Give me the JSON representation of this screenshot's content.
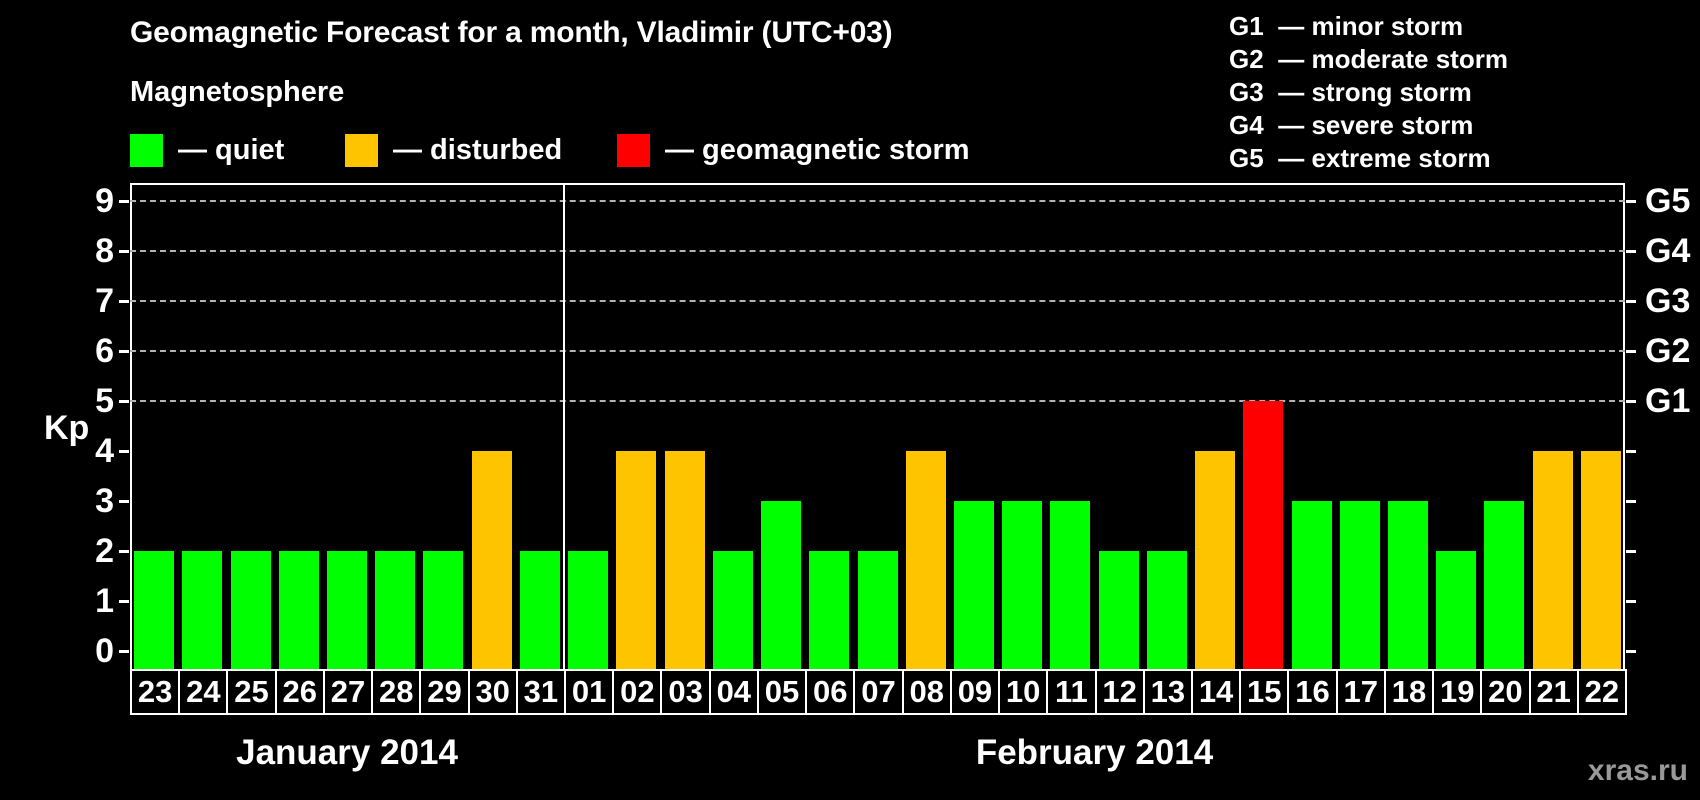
{
  "title": "Geomagnetic Forecast for a month, Vladimir (UTC+03)",
  "watermark": "xras.ru",
  "magnetosphere_legend": {
    "heading": "Magnetosphere",
    "items": [
      {
        "name": "quiet",
        "label": "— quiet",
        "color": "#00ff00"
      },
      {
        "name": "disturbed",
        "label": "— disturbed",
        "color": "#ffc400"
      },
      {
        "name": "storm",
        "label": "— geomagnetic storm",
        "color": "#ff0000"
      }
    ]
  },
  "g_scale_legend": {
    "items": [
      {
        "code": "G1",
        "label": "— minor storm"
      },
      {
        "code": "G2",
        "label": "— moderate storm"
      },
      {
        "code": "G3",
        "label": "— strong storm"
      },
      {
        "code": "G4",
        "label": "— severe storm"
      },
      {
        "code": "G5",
        "label": "— extreme storm"
      }
    ]
  },
  "chart_data": {
    "type": "bar",
    "ylabel": "Kp",
    "ylim": [
      0,
      9
    ],
    "left_ticks": [
      0,
      1,
      2,
      3,
      4,
      5,
      6,
      7,
      8,
      9
    ],
    "gridlines_at_kp": [
      5,
      6,
      7,
      8,
      9
    ],
    "right_axis": [
      {
        "kp": 5,
        "label": "G1"
      },
      {
        "kp": 6,
        "label": "G2"
      },
      {
        "kp": 7,
        "label": "G3"
      },
      {
        "kp": 8,
        "label": "G4"
      },
      {
        "kp": 9,
        "label": "G5"
      }
    ],
    "colors": {
      "quiet": "#00ff00",
      "disturbed": "#ffc400",
      "storm": "#ff0000"
    },
    "legend_position": "top-left",
    "grid": "dashed horizontal at storm levels only",
    "months": [
      {
        "label": "January 2014",
        "bars": [
          {
            "day": "23",
            "kp": 2,
            "status": "quiet"
          },
          {
            "day": "24",
            "kp": 2,
            "status": "quiet"
          },
          {
            "day": "25",
            "kp": 2,
            "status": "quiet"
          },
          {
            "day": "26",
            "kp": 2,
            "status": "quiet"
          },
          {
            "day": "27",
            "kp": 2,
            "status": "quiet"
          },
          {
            "day": "28",
            "kp": 2,
            "status": "quiet"
          },
          {
            "day": "29",
            "kp": 2,
            "status": "quiet"
          },
          {
            "day": "30",
            "kp": 4,
            "status": "disturbed"
          },
          {
            "day": "31",
            "kp": 2,
            "status": "quiet"
          }
        ]
      },
      {
        "label": "February 2014",
        "bars": [
          {
            "day": "01",
            "kp": 2,
            "status": "quiet"
          },
          {
            "day": "02",
            "kp": 4,
            "status": "disturbed"
          },
          {
            "day": "03",
            "kp": 4,
            "status": "disturbed"
          },
          {
            "day": "04",
            "kp": 2,
            "status": "quiet"
          },
          {
            "day": "05",
            "kp": 3,
            "status": "quiet"
          },
          {
            "day": "06",
            "kp": 2,
            "status": "quiet"
          },
          {
            "day": "07",
            "kp": 2,
            "status": "quiet"
          },
          {
            "day": "08",
            "kp": 4,
            "status": "disturbed"
          },
          {
            "day": "09",
            "kp": 3,
            "status": "quiet"
          },
          {
            "day": "10",
            "kp": 3,
            "status": "quiet"
          },
          {
            "day": "11",
            "kp": 3,
            "status": "quiet"
          },
          {
            "day": "12",
            "kp": 2,
            "status": "quiet"
          },
          {
            "day": "13",
            "kp": 2,
            "status": "quiet"
          },
          {
            "day": "14",
            "kp": 4,
            "status": "disturbed"
          },
          {
            "day": "15",
            "kp": 5,
            "status": "storm"
          },
          {
            "day": "16",
            "kp": 3,
            "status": "quiet"
          },
          {
            "day": "17",
            "kp": 3,
            "status": "quiet"
          },
          {
            "day": "18",
            "kp": 3,
            "status": "quiet"
          },
          {
            "day": "19",
            "kp": 2,
            "status": "quiet"
          },
          {
            "day": "20",
            "kp": 3,
            "status": "quiet"
          },
          {
            "day": "21",
            "kp": 4,
            "status": "disturbed"
          },
          {
            "day": "22",
            "kp": 4,
            "status": "disturbed"
          }
        ]
      }
    ]
  }
}
